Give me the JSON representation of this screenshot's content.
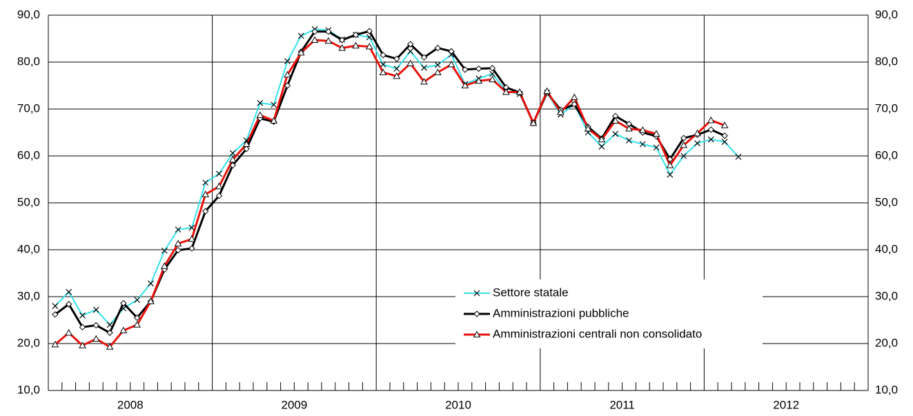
{
  "chart_data": {
    "type": "line",
    "x_labels": [
      "2008",
      "2009",
      "2010",
      "2011",
      "2012"
    ],
    "ylim": [
      10,
      90
    ],
    "yticks": [
      {
        "value": 10,
        "label": "10,0"
      },
      {
        "value": 20,
        "label": "20,0"
      },
      {
        "value": 30,
        "label": "30,0"
      },
      {
        "value": 40,
        "label": "40,0"
      },
      {
        "value": 50,
        "label": "50,0"
      },
      {
        "value": 60,
        "label": "60,0"
      },
      {
        "value": 70,
        "label": "70,0"
      },
      {
        "value": 80,
        "label": "80,0"
      },
      {
        "value": 90,
        "label": "90,0"
      }
    ],
    "grid": true,
    "series": [
      {
        "name": "Settore statale",
        "color": "#33e0e8",
        "marker": "x",
        "values": [
          28.0,
          31.0,
          26.0,
          27.2,
          24.0,
          27.5,
          29.3,
          32.8,
          39.8,
          44.3,
          44.7,
          54.3,
          56.2,
          60.6,
          63.3,
          71.3,
          70.9,
          80.2,
          85.6,
          87.0,
          86.8,
          84.8,
          85.8,
          85.3,
          79.5,
          78.6,
          82.3,
          78.8,
          79.4,
          81.6,
          75.3,
          76.5,
          77.5,
          73.8,
          73.2,
          67.0,
          73.5,
          68.8,
          71.0,
          65.0,
          62.0,
          64.7,
          63.3,
          62.5,
          61.8,
          56.0,
          60.0,
          62.7,
          63.5,
          63.0,
          59.8
        ]
      },
      {
        "name": "Amministrazioni pubbliche",
        "color": "#000000",
        "marker": "diamond",
        "values": [
          26.2,
          28.4,
          23.5,
          23.9,
          22.3,
          28.6,
          25.5,
          29.0,
          35.8,
          39.9,
          40.3,
          48.2,
          51.5,
          58.0,
          61.5,
          68.0,
          67.3,
          75.0,
          82.2,
          86.5,
          86.5,
          84.7,
          85.8,
          86.6,
          81.5,
          80.7,
          83.8,
          81.0,
          83.0,
          82.3,
          78.4,
          78.6,
          78.7,
          74.6,
          73.5,
          67.0,
          73.5,
          69.8,
          71.0,
          66.2,
          63.7,
          68.5,
          66.8,
          65.0,
          64.2,
          59.3,
          63.8,
          64.5,
          65.6,
          64.3,
          null
        ]
      },
      {
        "name": "Amministrazioni centrali non consolidato",
        "color": "#e8120c",
        "marker": "triangle",
        "values": [
          19.8,
          22.3,
          19.6,
          21.0,
          19.3,
          22.8,
          24.0,
          29.0,
          36.5,
          41.3,
          42.3,
          51.8,
          53.5,
          59.2,
          62.5,
          68.7,
          67.5,
          77.3,
          82.0,
          84.7,
          84.5,
          83.0,
          83.5,
          83.3,
          77.8,
          77.0,
          79.7,
          75.8,
          77.8,
          79.5,
          75.0,
          76.0,
          76.3,
          73.6,
          73.6,
          67.0,
          73.8,
          69.3,
          72.5,
          65.8,
          63.5,
          67.5,
          65.8,
          65.5,
          64.7,
          58.0,
          62.3,
          64.8,
          67.6,
          66.5,
          null
        ]
      }
    ]
  }
}
